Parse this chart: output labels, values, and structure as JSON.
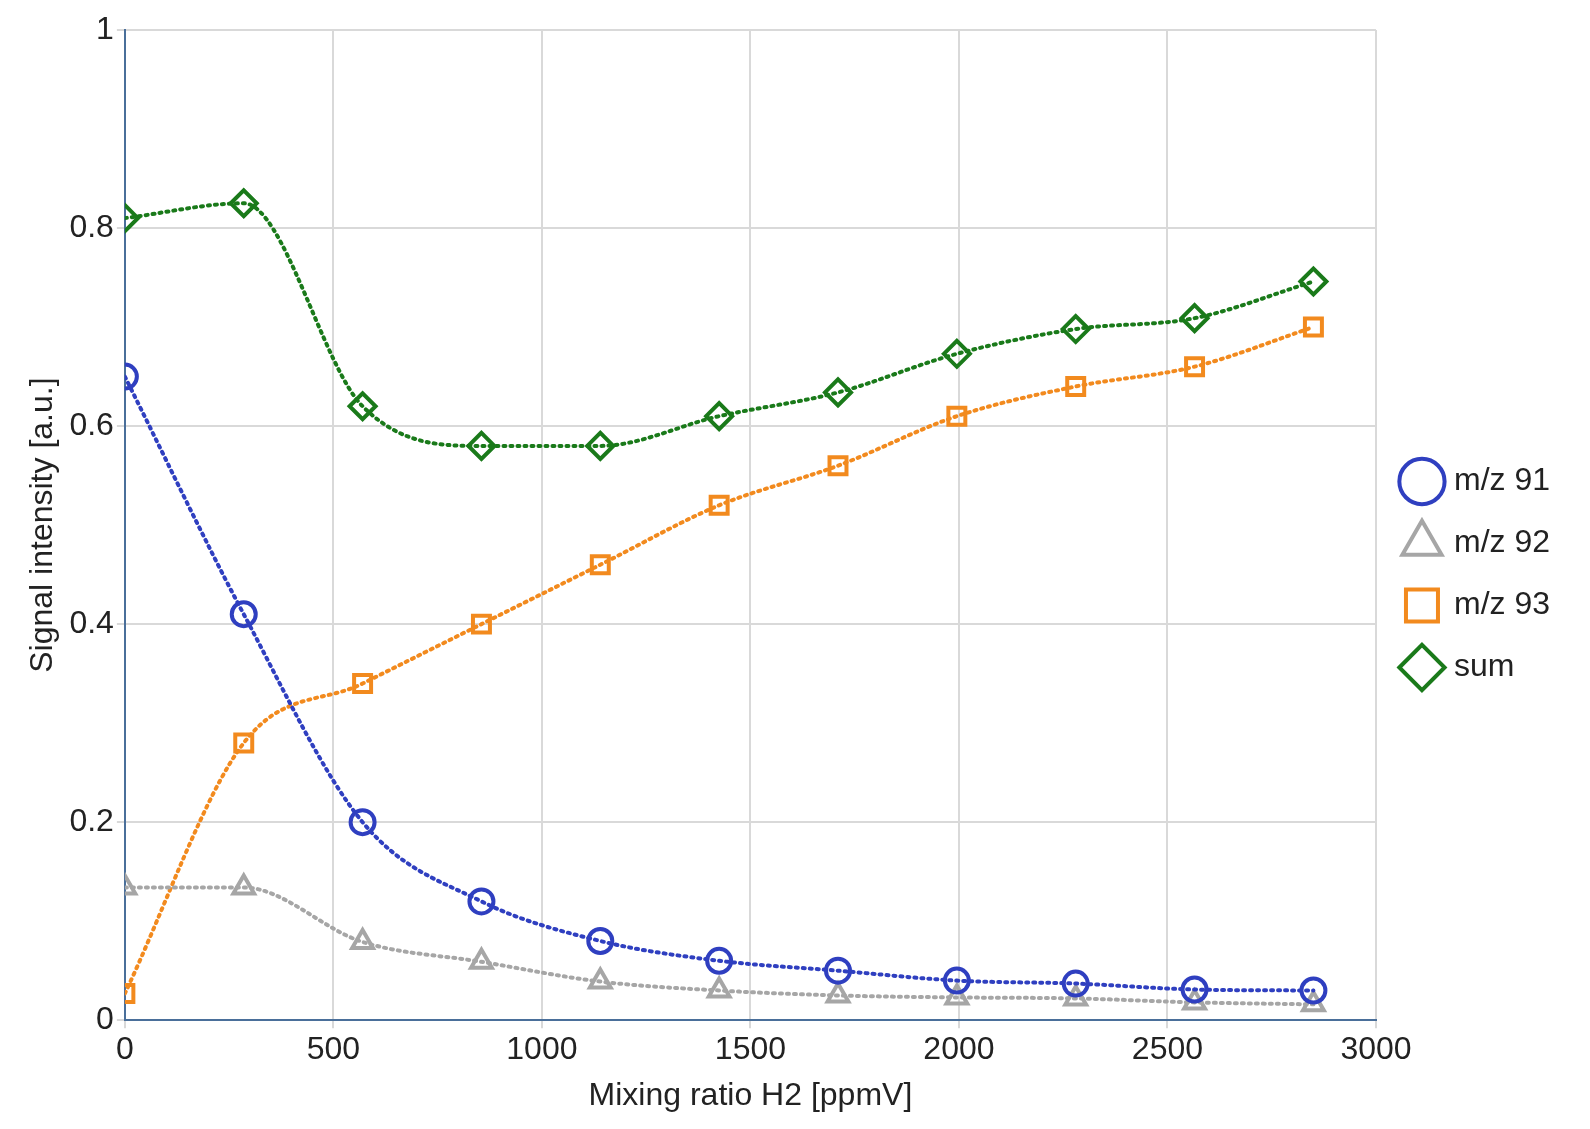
{
  "chart_data": {
    "type": "line",
    "xlabel": "Mixing ratio H2 [ppmV]",
    "ylabel": "Signal intensity [a.u.]",
    "x": [
      0,
      285,
      570,
      855,
      1140,
      1425,
      1710,
      1995,
      2280,
      2565,
      2850
    ],
    "series": [
      {
        "name": "m/z 91",
        "color": "#2f3fc0",
        "marker": "circle",
        "values": [
          0.65,
          0.41,
          0.2,
          0.12,
          0.08,
          0.06,
          0.05,
          0.04,
          0.037,
          0.031,
          0.03
        ]
      },
      {
        "name": "m/z 92",
        "color": "#a6a6a6",
        "marker": "triangle",
        "values": [
          0.134,
          0.134,
          0.079,
          0.059,
          0.039,
          0.03,
          0.025,
          0.023,
          0.022,
          0.018,
          0.016
        ]
      },
      {
        "name": "m/z 93",
        "color": "#f28a1e",
        "marker": "square",
        "values": [
          0.027,
          0.28,
          0.34,
          0.4,
          0.46,
          0.52,
          0.56,
          0.61,
          0.64,
          0.66,
          0.7
        ]
      },
      {
        "name": "sum",
        "color": "#1a7a1a",
        "marker": "diamond",
        "values": [
          0.81,
          0.825,
          0.62,
          0.58,
          0.58,
          0.61,
          0.634,
          0.673,
          0.698,
          0.709,
          0.746
        ]
      }
    ],
    "xlim": [
      0,
      3000
    ],
    "xticks": [
      0,
      500,
      1000,
      1500,
      2000,
      2500,
      3000
    ],
    "ylim": [
      0,
      1
    ],
    "yticks": [
      0,
      0.2,
      0.4,
      0.6,
      0.8,
      1
    ],
    "grid": true,
    "legend": "right",
    "line_style": "dotted"
  }
}
